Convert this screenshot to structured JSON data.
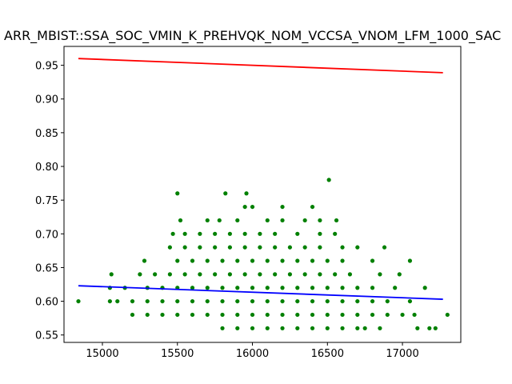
{
  "chart_data": {
    "type": "scatter",
    "title": "ARR_MBIST::SSA_SOC_VMIN_K_PREHVQK_NOM_VCCSA_VNOM_LFM_1000_SAC",
    "xlim": [
      14744,
      17389
    ],
    "ylim": [
      0.539,
      0.978
    ],
    "xticks": [
      15000,
      15500,
      16000,
      16500,
      17000
    ],
    "yticks": [
      0.55,
      {
        "value": 0.6,
        "label": "0.60"
      },
      0.65,
      {
        "value": 0.7,
        "label": "0.70"
      },
      0.75,
      {
        "value": 0.8,
        "label": "0.80"
      },
      0.85,
      {
        "value": 0.9,
        "label": "0.90"
      },
      0.95
    ],
    "series": [
      {
        "type": "scatter",
        "color": "#008000",
        "x": [
          15800,
          15900,
          16000,
          16100,
          16200,
          16300,
          16400,
          16500,
          16600,
          16700,
          16750,
          16850,
          17100,
          17180,
          17220,
          15200,
          15300,
          15400,
          15500,
          15600,
          15700,
          15800,
          15900,
          16000,
          16100,
          16200,
          16300,
          16400,
          16500,
          16600,
          16700,
          16800,
          16900,
          17000,
          17080,
          17300,
          14840,
          15050,
          15100,
          15200,
          15300,
          15400,
          15500,
          15600,
          15700,
          15800,
          15900,
          16000,
          16100,
          16200,
          16300,
          16400,
          16500,
          16600,
          16700,
          16800,
          16900,
          17050,
          15050,
          15150,
          15300,
          15400,
          15500,
          15600,
          15700,
          15800,
          15900,
          16000,
          16100,
          16200,
          16300,
          16400,
          16500,
          16600,
          16700,
          16800,
          16950,
          17150,
          15060,
          15250,
          15350,
          15450,
          15550,
          15650,
          15750,
          15850,
          15950,
          16050,
          16150,
          16250,
          16350,
          16450,
          16550,
          16650,
          16850,
          16980,
          15280,
          15500,
          15600,
          15700,
          15800,
          15900,
          16000,
          16100,
          16200,
          16300,
          16400,
          16500,
          16600,
          16800,
          17050,
          15450,
          15550,
          15650,
          15750,
          15850,
          15950,
          16050,
          16150,
          16250,
          16350,
          16450,
          16600,
          16700,
          16880,
          15470,
          15550,
          15650,
          15750,
          15850,
          15950,
          16050,
          16150,
          16300,
          16450,
          16550,
          15520,
          15700,
          15780,
          15900,
          16100,
          16200,
          16350,
          16450,
          16560,
          15950,
          16000,
          16200,
          16400,
          15500,
          15820,
          15960,
          16510
        ],
        "values": [
          0.56,
          0.56,
          0.56,
          0.56,
          0.56,
          0.56,
          0.56,
          0.56,
          0.56,
          0.56,
          0.56,
          0.56,
          0.56,
          0.56,
          0.56,
          0.58,
          0.58,
          0.58,
          0.58,
          0.58,
          0.58,
          0.58,
          0.58,
          0.58,
          0.58,
          0.58,
          0.58,
          0.58,
          0.58,
          0.58,
          0.58,
          0.58,
          0.58,
          0.58,
          0.58,
          0.58,
          0.6,
          0.6,
          0.6,
          0.6,
          0.6,
          0.6,
          0.6,
          0.6,
          0.6,
          0.6,
          0.6,
          0.6,
          0.6,
          0.6,
          0.6,
          0.6,
          0.6,
          0.6,
          0.6,
          0.6,
          0.6,
          0.6,
          0.62,
          0.62,
          0.62,
          0.62,
          0.62,
          0.62,
          0.62,
          0.62,
          0.62,
          0.62,
          0.62,
          0.62,
          0.62,
          0.62,
          0.62,
          0.62,
          0.62,
          0.62,
          0.62,
          0.62,
          0.64,
          0.64,
          0.64,
          0.64,
          0.64,
          0.64,
          0.64,
          0.64,
          0.64,
          0.64,
          0.64,
          0.64,
          0.64,
          0.64,
          0.64,
          0.64,
          0.64,
          0.64,
          0.66,
          0.66,
          0.66,
          0.66,
          0.66,
          0.66,
          0.66,
          0.66,
          0.66,
          0.66,
          0.66,
          0.66,
          0.66,
          0.66,
          0.66,
          0.68,
          0.68,
          0.68,
          0.68,
          0.68,
          0.68,
          0.68,
          0.68,
          0.68,
          0.68,
          0.68,
          0.68,
          0.68,
          0.68,
          0.7,
          0.7,
          0.7,
          0.7,
          0.7,
          0.7,
          0.7,
          0.7,
          0.7,
          0.7,
          0.7,
          0.72,
          0.72,
          0.72,
          0.72,
          0.72,
          0.72,
          0.72,
          0.72,
          0.72,
          0.74,
          0.74,
          0.74,
          0.74,
          0.76,
          0.76,
          0.76,
          0.78
        ]
      },
      {
        "type": "line",
        "color": "#ff0000",
        "x": [
          14840,
          17270
        ],
        "values": [
          0.96,
          0.939
        ]
      },
      {
        "type": "line",
        "color": "#0000ff",
        "x": [
          14840,
          17270
        ],
        "values": [
          0.623,
          0.603
        ]
      }
    ]
  }
}
